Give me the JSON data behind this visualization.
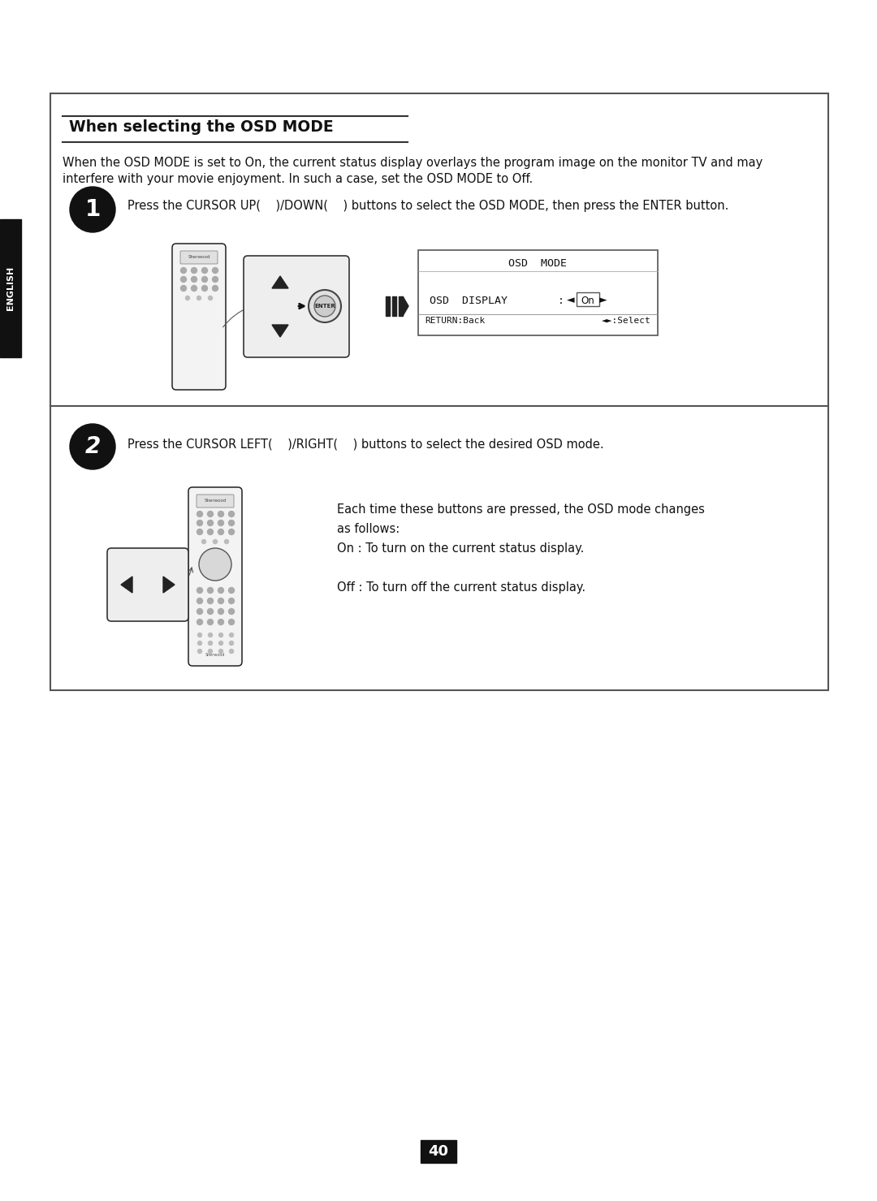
{
  "bg_color": "#ffffff",
  "title_text": "When selecting the OSD MODE",
  "english_label": "ENGLISH",
  "intro_line1": "When the OSD MODE is set to On, the current status display overlays the program image on the monitor TV and may",
  "intro_line2": "interfere with your movie enjoyment. In such a case, set the OSD MODE to Off.",
  "step1_instruction": "Press the CURSOR UP(    )/DOWN(    ) buttons to select the OSD MODE, then press the ENTER button.",
  "step2_instruction": "Press the CURSOR LEFT(    )/RIGHT(    ) buttons to select the desired OSD mode.",
  "step2_detail_line1": "Each time these buttons are pressed, the OSD mode changes",
  "step2_detail_line2": "as follows:",
  "step2_detail_line3": "On : To turn on the current status display.",
  "step2_detail_line4": "",
  "step2_detail_line5": "Off : To turn off the current status display.",
  "osd_mode_title": "OSD  MODE",
  "osd_display_label": "OSD  DISPLAY",
  "osd_display_value": "On",
  "return_text": "RETURN:Back",
  "select_text": "◄►:Select",
  "page_number": "40",
  "sidebar_color": "#111111",
  "circle_color": "#111111",
  "text_color": "#111111",
  "border_color": "#555555"
}
